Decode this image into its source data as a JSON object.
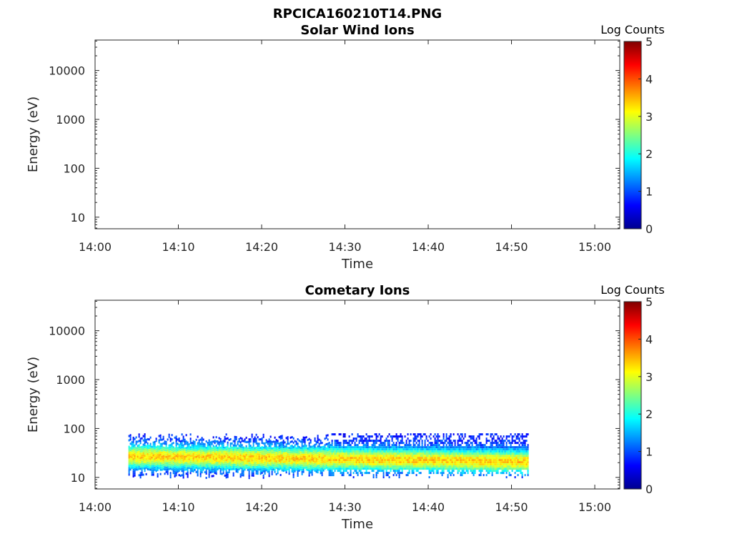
{
  "figure": {
    "title": "RPCICA160210T14.PNG"
  },
  "colormap": [
    "#00008f",
    "#0000ff",
    "#0080ff",
    "#00ffff",
    "#80ff80",
    "#ffff00",
    "#ff8000",
    "#ff0000",
    "#800000"
  ],
  "chart_data": [
    {
      "type": "heatmap",
      "title": "Solar Wind Ions",
      "xlabel": "Time",
      "ylabel": "Energy (eV)",
      "x_ticks": [
        "14:00",
        "14:10",
        "14:20",
        "14:30",
        "14:40",
        "14:50",
        "15:00"
      ],
      "x_range": [
        "14:00",
        "15:03"
      ],
      "y_scale": "log",
      "y_ticks": [
        "10",
        "100",
        "1000",
        "10000"
      ],
      "y_range": [
        5.8,
        42000
      ],
      "colorbar": {
        "label": "Log Counts",
        "range": [
          0,
          5
        ],
        "ticks": [
          "0",
          "1",
          "2",
          "3",
          "4",
          "5"
        ]
      },
      "data": []
    },
    {
      "type": "heatmap",
      "title": "Cometary Ions",
      "xlabel": "Time",
      "ylabel": "Energy (eV)",
      "x_ticks": [
        "14:00",
        "14:10",
        "14:20",
        "14:30",
        "14:40",
        "14:50",
        "15:00"
      ],
      "x_range": [
        "14:00",
        "15:03"
      ],
      "y_scale": "log",
      "y_ticks": [
        "10",
        "100",
        "1000",
        "10000"
      ],
      "y_range": [
        5.8,
        42000
      ],
      "colorbar": {
        "label": "Log Counts",
        "range": [
          0,
          5
        ],
        "ticks": [
          "0",
          "1",
          "2",
          "3",
          "4",
          "5"
        ]
      },
      "data": [
        {
          "time_range": [
            "14:04",
            "14:52"
          ],
          "energy_range": [
            15,
            80
          ],
          "log_counts": 1,
          "description_level": "low"
        },
        {
          "time_range": [
            "14:04",
            "14:52"
          ],
          "energy_range": [
            18,
            55
          ],
          "log_counts": 1.6
        },
        {
          "time_range": [
            "14:04",
            "14:52"
          ],
          "energy_range": [
            20,
            35
          ],
          "log_counts": 2.3
        }
      ]
    }
  ]
}
